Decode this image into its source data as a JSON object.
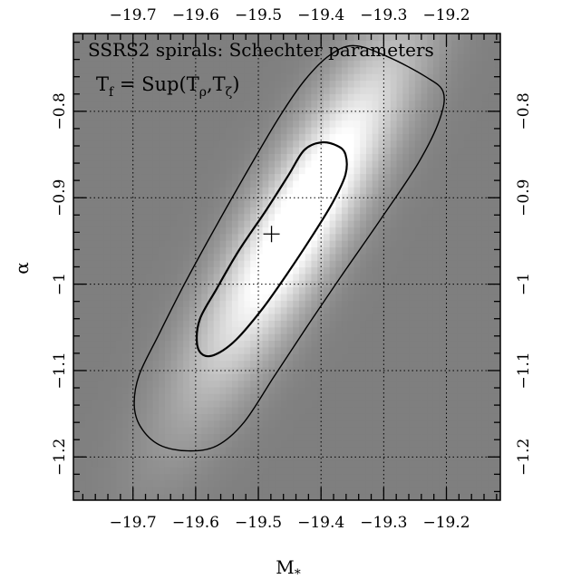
{
  "chart_data": {
    "type": "heatmap",
    "title": "SSRS2 spirals: Schechter parameters",
    "annotation": {
      "prefix": "T",
      "prefix_sub": "f",
      "middle": " = Sup(T",
      "rho_sub": "ρ",
      "comma": ",T",
      "zeta_sub": "ζ",
      "suffix": ")"
    },
    "xlabel": "M",
    "xlabel_sub": "*",
    "ylabel": "α",
    "xlim": [
      -19.795,
      -19.114
    ],
    "ylim": [
      -1.25,
      -0.71
    ],
    "x_ticks": [
      -19.7,
      -19.6,
      -19.5,
      -19.4,
      -19.3,
      -19.2
    ],
    "x_tick_labels": [
      "−19.7",
      "−19.6",
      "−19.5",
      "−19.4",
      "−19.3",
      "−19.2"
    ],
    "y_ticks": [
      -1.2,
      -1.1,
      -1.0,
      -0.9,
      -0.8
    ],
    "y_tick_labels": [
      "−1.2",
      "−1.1",
      "−1",
      "−0.9",
      "−0.8"
    ],
    "grid": true,
    "best_fit": {
      "x": -19.479,
      "y": -0.942
    },
    "contours": [
      {
        "level": "outer",
        "points": [
          [
            -19.698,
            -1.139
          ],
          [
            -19.69,
            -1.105
          ],
          [
            -19.66,
            -1.06
          ],
          [
            -19.618,
            -1.0
          ],
          [
            -19.566,
            -0.931
          ],
          [
            -19.511,
            -0.861
          ],
          [
            -19.466,
            -0.806
          ],
          [
            -19.426,
            -0.764
          ],
          [
            -19.386,
            -0.735
          ],
          [
            -19.347,
            -0.724
          ],
          [
            -19.293,
            -0.737
          ],
          [
            -19.233,
            -0.76
          ],
          [
            -19.205,
            -0.778
          ],
          [
            -19.211,
            -0.81
          ],
          [
            -19.245,
            -0.86
          ],
          [
            -19.303,
            -0.923
          ],
          [
            -19.368,
            -0.991
          ],
          [
            -19.425,
            -1.052
          ],
          [
            -19.475,
            -1.107
          ],
          [
            -19.523,
            -1.16
          ],
          [
            -19.566,
            -1.187
          ],
          [
            -19.612,
            -1.193
          ],
          [
            -19.658,
            -1.186
          ],
          [
            -19.688,
            -1.165
          ],
          [
            -19.698,
            -1.139
          ]
        ]
      },
      {
        "level": "inner",
        "points": [
          [
            -19.598,
            -1.068
          ],
          [
            -19.593,
            -1.04
          ],
          [
            -19.567,
            -1.006
          ],
          [
            -19.531,
            -0.961
          ],
          [
            -19.488,
            -0.915
          ],
          [
            -19.452,
            -0.874
          ],
          [
            -19.427,
            -0.845
          ],
          [
            -19.4,
            -0.836
          ],
          [
            -19.374,
            -0.84
          ],
          [
            -19.361,
            -0.85
          ],
          [
            -19.361,
            -0.873
          ],
          [
            -19.381,
            -0.905
          ],
          [
            -19.413,
            -0.943
          ],
          [
            -19.453,
            -0.987
          ],
          [
            -19.493,
            -1.028
          ],
          [
            -19.535,
            -1.064
          ],
          [
            -19.567,
            -1.081
          ],
          [
            -19.588,
            -1.082
          ],
          [
            -19.598,
            -1.068
          ]
        ]
      }
    ]
  },
  "colors": {
    "background": "#7f7f7f",
    "peak": "#ffffff",
    "grid": "#000000",
    "contour": "#000000"
  }
}
